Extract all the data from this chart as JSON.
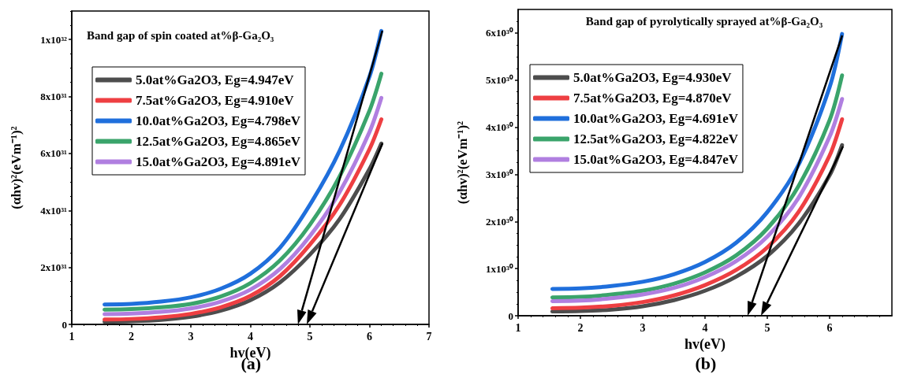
{
  "chart_data": [
    {
      "type": "line",
      "title": "Band gap of spin coated at%β-Ga₂O₃",
      "xlabel": "hv(eV)",
      "ylabel": "(αhv)²(eVm⁻¹)²",
      "annotations": [
        "(a)"
      ],
      "xlim": [
        1,
        7
      ],
      "xticks": [
        1,
        2,
        3,
        4,
        5,
        6,
        7
      ],
      "ylim": [
        0,
        1.1e+32
      ],
      "yticks": [
        0,
        {
          "value": 2e+31,
          "label": "2x10³¹"
        },
        {
          "value": 4e+31,
          "label": "4x10³¹"
        },
        {
          "value": 6e+31,
          "label": "6x10³¹"
        },
        {
          "value": 8e+31,
          "label": "8x10³¹"
        },
        {
          "value": 1e+32,
          "label": "1x10³²"
        }
      ],
      "grid": false,
      "legend": "top left",
      "marker": "none",
      "line_style": "solid",
      "x": [
        1.55,
        2,
        2.5,
        3,
        3.5,
        4,
        4.5,
        5,
        5.5,
        6,
        6.2
      ],
      "series": [
        {
          "name": "5.0at%Ga2O3, Eg=4.947eV",
          "color": "#4d4d4d",
          "values": [
            9e+29,
            1.1e+30,
            1.6e+30,
            2.7e+30,
            4.8e+30,
            8.5e+30,
            1.48e+31,
            2.45e+31,
            3.7e+31,
            5.45e+31,
            6.35e+31
          ]
        },
        {
          "name": "7.5at%Ga2O3, Eg=4.910eV",
          "color": "#ee3f42",
          "values": [
            1.7e+30,
            1.9e+30,
            2.5e+30,
            3.7e+30,
            6e+30,
            1e+31,
            1.7e+31,
            2.8e+31,
            4.2e+31,
            6.15e+31,
            7.2e+31
          ]
        },
        {
          "name": "10.0at%Ga2O3, Eg=4.798eV",
          "color": "#1f6fdc",
          "values": [
            7e+30,
            7.2e+30,
            8e+30,
            9.5e+30,
            1.25e+31,
            1.78e+31,
            2.7e+31,
            4.2e+31,
            6.1e+31,
            8.7e+31,
            1.03e+32
          ]
        },
        {
          "name": "12.5at%Ga2O3, Eg=4.865eV",
          "color": "#3aa46b",
          "values": [
            5.2e+30,
            5.4e+30,
            6e+30,
            7.2e+30,
            9.8e+30,
            1.45e+31,
            2.25e+31,
            3.5e+31,
            5.2e+31,
            7.5e+31,
            8.8e+31
          ]
        },
        {
          "name": "15.0at%Ga2O3, Eg=4.891eV",
          "color": "#b07fe0",
          "values": [
            3.6e+30,
            3.8e+30,
            4.4e+30,
            5.6e+30,
            8e+30,
            1.22e+31,
            1.95e+31,
            3.1e+31,
            4.65e+31,
            6.75e+31,
            7.95e+31
          ]
        }
      ]
    },
    {
      "type": "line",
      "title": "Band gap of pyrolytically sprayed at%β-Ga₂O₃",
      "xlabel": "hv(eV)",
      "ylabel": "(αhv)²(eVm⁻¹)²",
      "annotations": [
        "(b)"
      ],
      "xlim": [
        1,
        7
      ],
      "xticks": [
        1,
        2,
        3,
        4,
        5,
        6
      ],
      "ylim": [
        0,
        6.5e+30
      ],
      "yticks": [
        0,
        {
          "value": 1e+30,
          "label": "1x10³⁰"
        },
        {
          "value": 2e+30,
          "label": "2x10³⁰"
        },
        {
          "value": 3e+30,
          "label": "3x10³⁰"
        },
        {
          "value": 4e+30,
          "label": "4x10³⁰"
        },
        {
          "value": 5e+30,
          "label": "5x10³⁰"
        },
        {
          "value": 6e+30,
          "label": "6x10³⁰"
        }
      ],
      "grid": false,
      "legend": "top left",
      "marker": "none",
      "line_style": "solid",
      "x": [
        1.55,
        2,
        2.5,
        3,
        3.5,
        4,
        4.5,
        5,
        5.5,
        6,
        6.2
      ],
      "series": [
        {
          "name": "5.0at%Ga2O3, Eg=4.930eV",
          "color": "#4d4d4d",
          "values": [
            9e+28,
            1e+29,
            1.3e+29,
            2e+29,
            3.3e+29,
            5.3e+29,
            8.3e+29,
            1.27e+30,
            1.95e+30,
            2.98e+30,
            3.62e+30
          ]
        },
        {
          "name": "7.5at%Ga2O3, Eg=4.870eV",
          "color": "#ee3f42",
          "values": [
            1.6e+29,
            1.7e+29,
            2.1e+29,
            2.9e+29,
            4.3e+29,
            6.5e+29,
            9.7e+29,
            1.45e+30,
            2.2e+30,
            3.4e+30,
            4.17e+30
          ]
        },
        {
          "name": "10.0at%Ga2O3, Eg=4.691eV",
          "color": "#1f6fdc",
          "values": [
            5.7e+29,
            5.8e+29,
            6.3e+29,
            7.2e+29,
            8.8e+29,
            1.14e+30,
            1.55e+30,
            2.2e+30,
            3.2e+30,
            4.85e+30,
            5.98e+30
          ]
        },
        {
          "name": "12.5at%Ga2O3, Eg=4.822eV",
          "color": "#3aa46b",
          "values": [
            3.9e+29,
            4e+29,
            4.5e+29,
            5.3e+29,
            6.8e+29,
            9.2e+29,
            1.28e+30,
            1.85e+30,
            2.75e+30,
            4.15e+30,
            5.1e+30
          ]
        },
        {
          "name": "15.0at%Ga2O3, Eg=4.847eV",
          "color": "#b07fe0",
          "values": [
            3.1e+29,
            3.2e+29,
            3.7e+29,
            4.5e+29,
            5.9e+29,
            8.2e+29,
            1.16e+30,
            1.68e+30,
            2.5e+30,
            3.8e+30,
            4.6e+30
          ]
        }
      ]
    }
  ]
}
